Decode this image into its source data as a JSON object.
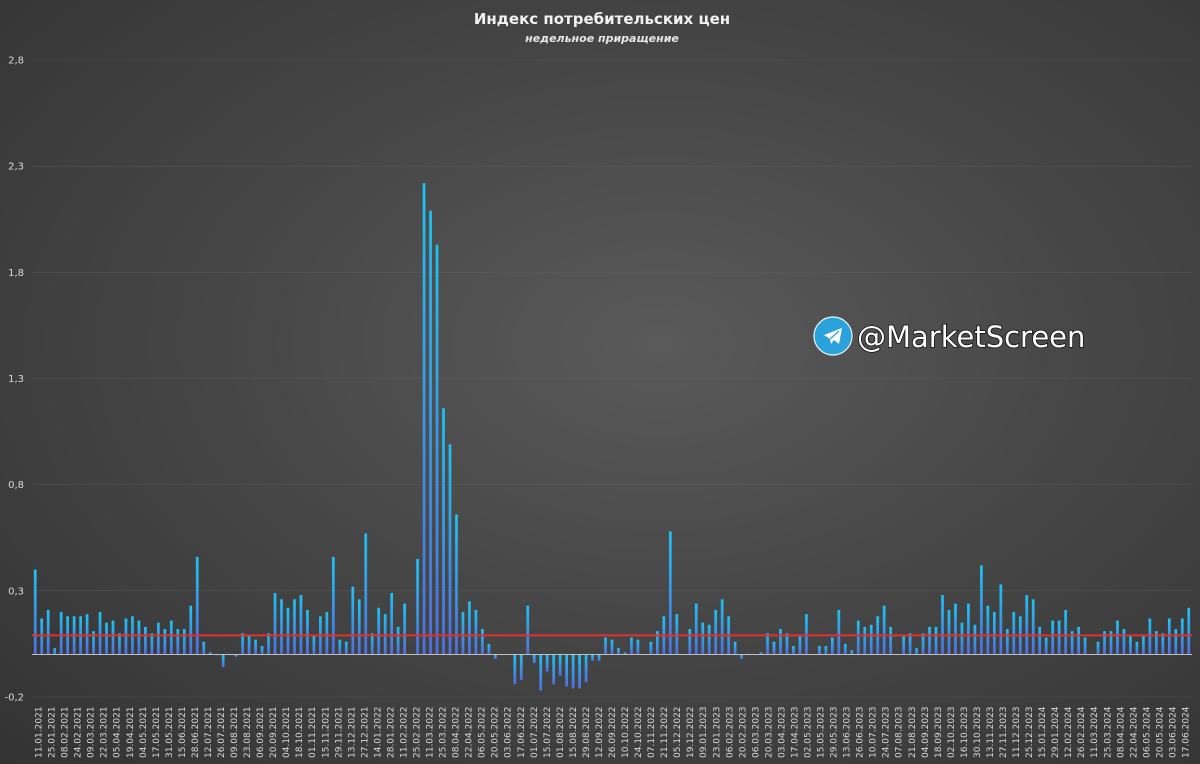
{
  "watermark": {
    "text": "@MarketScreen",
    "icon": "telegram-icon"
  },
  "colors": {
    "bar": "#4aa3f0",
    "average_line": "#e03030",
    "axis": "#bfbfbf",
    "grid": "#6a6a6a"
  },
  "chart_data": {
    "type": "bar",
    "title": "Индекс потребительских цен",
    "subtitle": "недельное приращение",
    "ylim": [
      -0.2,
      2.8
    ],
    "yticks": [
      "-0,2",
      "0,3",
      "0,8",
      "1,3",
      "1,8",
      "2,3",
      "2,8"
    ],
    "ytick_values": [
      -0.2,
      0.3,
      0.8,
      1.3,
      1.8,
      2.3,
      2.8
    ],
    "grid": "horizontal",
    "legend": "none",
    "reference_line": {
      "value": 0.09
    },
    "xtick_labels": [
      "11.01.2021",
      "25.01.2021",
      "08.02.2021",
      "24.02.2021",
      "09.03.2021",
      "22.03.2021",
      "05.04.2021",
      "19.04.2021",
      "04.05.2021",
      "17.05.2021",
      "31.05.2021",
      "15.06.2021",
      "28.06.2021",
      "12.07.2021",
      "26.07.2021",
      "09.08.2021",
      "23.08.2021",
      "06.09.2021",
      "20.09.2021",
      "04.10.2021",
      "18.10.2021",
      "01.11.2021",
      "15.11.2021",
      "29.11.2021",
      "13.12.2021",
      "27.12.2021",
      "14.01.2022",
      "28.01.2022",
      "11.02.2022",
      "25.02.2022",
      "11.03.2022",
      "25.03.2022",
      "08.04.2022",
      "22.04.2022",
      "06.05.2022",
      "20.05.2022",
      "03.06.2022",
      "17.06.2022",
      "01.07.2022",
      "15.07.2022",
      "01.08.2022",
      "15.08.2022",
      "29.08.2022",
      "12.09.2022",
      "26.09.2022",
      "10.10.2022",
      "24.10.2022",
      "07.11.2022",
      "21.11.2022",
      "05.12.2022",
      "19.12.2022",
      "09.01.2023",
      "23.01.2023",
      "06.02.2023",
      "20.02.2023",
      "06.03.2023",
      "20.03.2023",
      "03.04.2023",
      "17.04.2023",
      "02.05.2023",
      "15.05.2023",
      "29.05.2023",
      "13.06.2023",
      "26.06.2023",
      "10.07.2023",
      "24.07.2023",
      "07.08.2023",
      "21.08.2023",
      "04.09.2023",
      "18.09.2023",
      "02.10.2023",
      "16.10.2023",
      "30.10.2023",
      "13.11.2023",
      "27.11.2023",
      "11.12.2023",
      "25.12.2023",
      "15.01.2024",
      "29.01.2024",
      "12.02.2024",
      "26.02.2024",
      "11.03.2024",
      "25.03.2024",
      "08.04.2024",
      "22.04.2024",
      "06.05.2024",
      "20.05.2024",
      "03.06.2024",
      "17.06.2024"
    ],
    "values": [
      0.4,
      0.17,
      0.21,
      0.03,
      0.2,
      0.18,
      0.18,
      0.18,
      0.19,
      0.11,
      0.2,
      0.15,
      0.16,
      0.1,
      0.17,
      0.18,
      0.16,
      0.13,
      0.1,
      0.15,
      0.12,
      0.16,
      0.12,
      0.12,
      0.23,
      0.46,
      0.06,
      0.01,
      0.0,
      -0.06,
      0.0,
      -0.01,
      0.1,
      0.09,
      0.07,
      0.04,
      0.1,
      0.29,
      0.26,
      0.22,
      0.26,
      0.28,
      0.21,
      0.09,
      0.18,
      0.2,
      0.46,
      0.07,
      0.06,
      0.32,
      0.26,
      0.57,
      0.1,
      0.22,
      0.19,
      0.29,
      0.13,
      0.24,
      0.0,
      0.45,
      2.22,
      2.09,
      1.93,
      1.16,
      0.99,
      0.66,
      0.2,
      0.25,
      0.21,
      0.12,
      0.05,
      -0.02,
      0.0,
      0.0,
      -0.14,
      -0.12,
      0.23,
      -0.04,
      -0.17,
      -0.08,
      -0.14,
      -0.1,
      -0.15,
      -0.16,
      -0.16,
      -0.13,
      -0.03,
      -0.03,
      0.08,
      0.07,
      0.03,
      0.01,
      0.08,
      0.07,
      0.0,
      0.06,
      0.11,
      0.18,
      0.58,
      0.19,
      0.0,
      0.12,
      0.24,
      0.15,
      0.14,
      0.21,
      0.26,
      0.18,
      0.06,
      -0.02,
      0.0,
      0.0,
      0.01,
      0.1,
      0.06,
      0.12,
      0.1,
      0.04,
      0.09,
      0.19,
      0.0,
      0.04,
      0.04,
      0.08,
      0.21,
      0.05,
      0.02,
      0.16,
      0.13,
      0.14,
      0.18,
      0.23,
      0.13,
      0.0,
      0.09,
      0.1,
      0.03,
      0.1,
      0.13,
      0.13,
      0.28,
      0.21,
      0.24,
      0.15,
      0.24,
      0.14,
      0.42,
      0.23,
      0.2,
      0.33,
      0.12,
      0.2,
      0.18,
      0.28,
      0.26,
      0.13,
      0.08,
      0.16,
      0.16,
      0.21,
      0.11,
      0.13,
      0.08,
      0.0,
      0.06,
      0.11,
      0.11,
      0.16,
      0.12,
      0.09,
      0.06,
      0.09,
      0.17,
      0.11,
      0.1,
      0.17,
      0.12,
      0.17,
      0.22
    ]
  }
}
